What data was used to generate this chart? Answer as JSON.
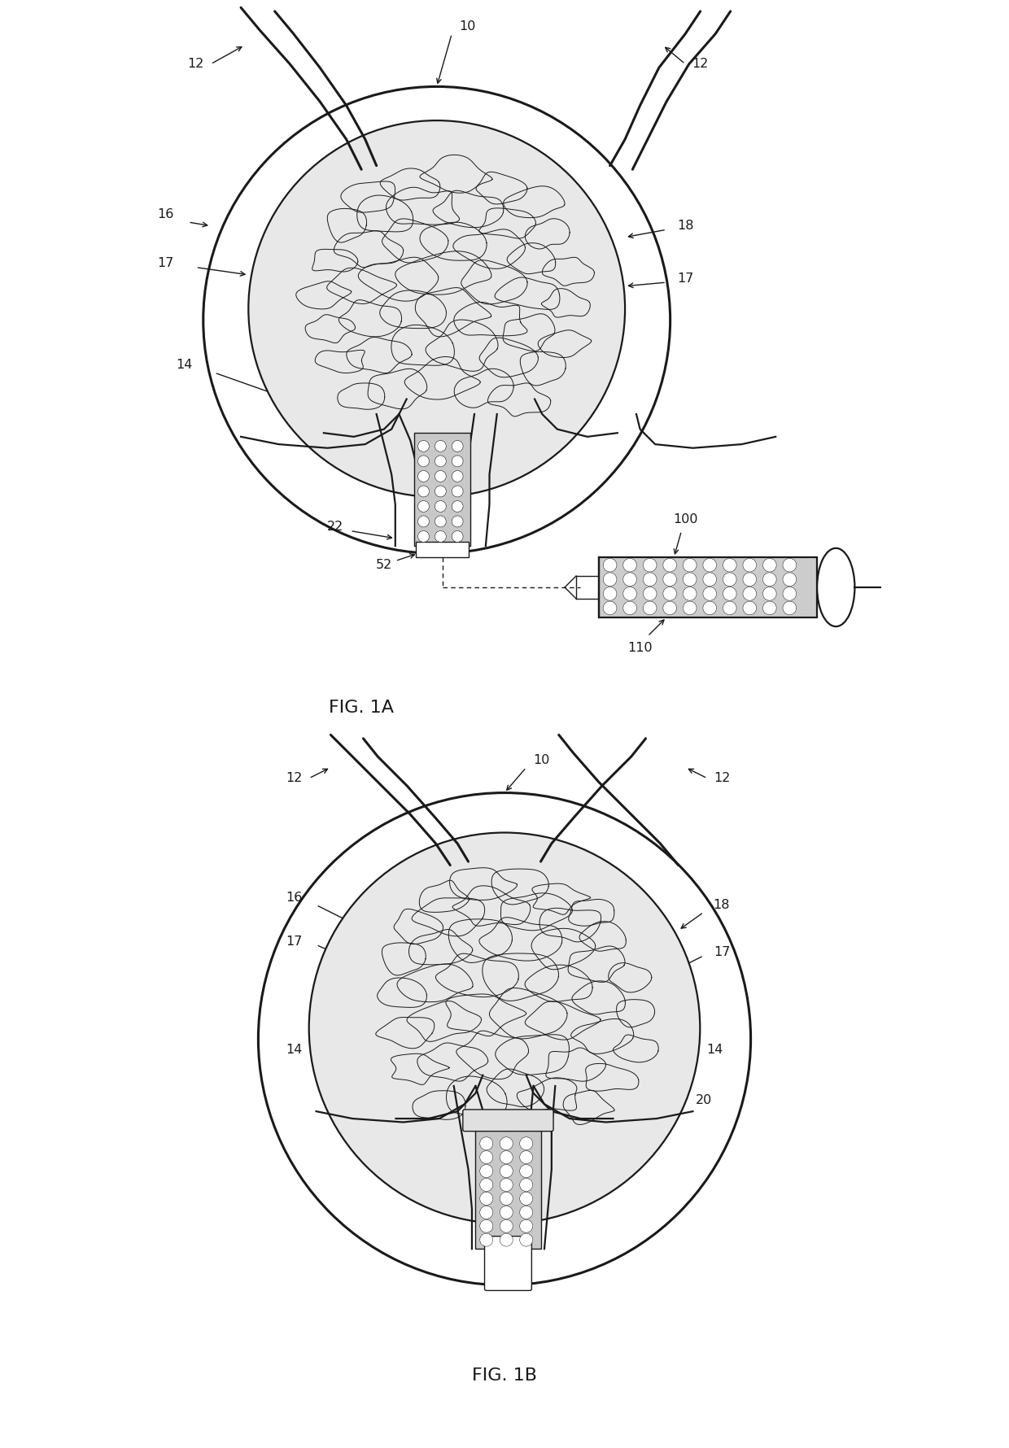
{
  "background_color": "#ffffff",
  "line_color": "#1a1a1a",
  "lw_main": 1.6,
  "lw_thin": 1.0,
  "lw_thick": 2.2,
  "fig1a_title": "FIG. 1A",
  "fig1b_title": "FIG. 1B",
  "blob_color": "#f0f0f0",
  "inner_fill": "#e8e8e8",
  "device_fill": "#c8c8c8",
  "syringe_fill": "#cccccc"
}
